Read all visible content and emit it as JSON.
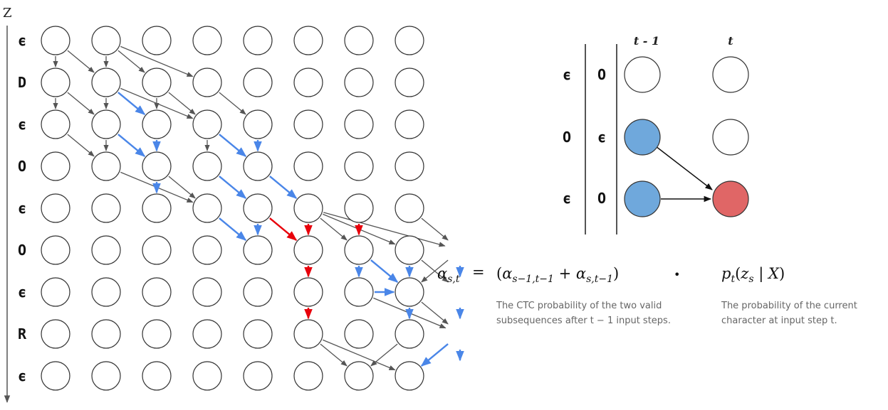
{
  "lattice": {
    "axis_label": "Z",
    "rows": [
      "ϵ",
      "D",
      "ϵ",
      "O",
      "ϵ",
      "O",
      "ϵ",
      "R",
      "ϵ"
    ],
    "columns": 8,
    "edges_gray": [
      [
        0,
        0,
        0,
        1
      ],
      [
        0,
        0,
        1,
        1
      ],
      [
        0,
        1,
        0,
        2
      ],
      [
        0,
        1,
        1,
        2
      ],
      [
        0,
        2,
        1,
        3
      ],
      [
        1,
        0,
        1,
        1
      ],
      [
        1,
        0,
        2,
        1
      ],
      [
        1,
        0,
        3,
        1
      ],
      [
        1,
        1,
        1,
        2
      ],
      [
        1,
        1,
        2,
        2
      ],
      [
        1,
        1,
        3,
        2
      ],
      [
        1,
        2,
        1,
        3
      ],
      [
        1,
        3,
        3,
        4
      ],
      [
        2,
        1,
        2,
        2
      ],
      [
        2,
        1,
        3,
        2
      ],
      [
        2,
        3,
        3,
        4
      ],
      [
        3,
        1,
        4,
        2
      ],
      [
        3,
        2,
        3,
        3
      ],
      [
        3,
        2,
        4,
        3
      ],
      [
        3,
        3,
        4,
        4
      ],
      [
        4,
        3,
        5,
        4
      ],
      [
        5,
        4,
        6,
        5
      ],
      [
        5,
        4,
        7,
        5
      ],
      [
        5,
        4,
        8,
        5
      ],
      [
        5,
        7,
        6,
        8
      ],
      [
        5,
        7,
        7,
        8
      ],
      [
        6,
        5,
        7,
        6
      ],
      [
        6,
        6,
        8,
        7
      ],
      [
        7,
        4,
        8,
        5
      ],
      [
        7,
        5,
        8,
        6
      ],
      [
        7,
        6,
        8,
        7
      ],
      [
        7,
        7,
        6,
        8
      ],
      [
        8,
        5,
        7,
        6
      ],
      [
        8,
        6,
        8,
        7
      ]
    ],
    "edges_blue": [
      [
        1,
        1,
        2,
        2
      ],
      [
        2,
        2,
        2,
        3
      ],
      [
        1,
        2,
        2,
        3
      ],
      [
        2,
        3,
        2,
        4
      ],
      [
        3,
        3,
        4,
        4
      ],
      [
        3,
        2,
        4,
        3
      ],
      [
        4,
        2,
        4,
        3
      ],
      [
        4,
        3,
        5,
        4
      ],
      [
        3,
        4,
        4,
        5
      ],
      [
        4,
        4,
        4,
        5
      ],
      [
        6,
        5,
        6,
        6
      ],
      [
        6,
        5,
        7,
        6
      ],
      [
        6,
        6,
        7,
        6
      ],
      [
        7,
        5,
        7,
        6
      ],
      [
        7,
        6,
        7,
        7
      ],
      [
        8,
        5,
        8,
        6
      ],
      [
        8,
        6,
        8,
        7
      ],
      [
        8,
        7,
        8,
        8
      ],
      [
        8,
        7,
        7,
        8
      ]
    ],
    "edges_red": [
      [
        4,
        4,
        5,
        5
      ],
      [
        5,
        4,
        5,
        5
      ],
      [
        6,
        4,
        6,
        5
      ],
      [
        5,
        5,
        5,
        6
      ],
      [
        5,
        6,
        5,
        7
      ]
    ]
  },
  "inset": {
    "col_labels": [
      "t - 1",
      "t"
    ],
    "left_labels": [
      "ϵ",
      "O",
      "ϵ"
    ],
    "mid_labels": [
      "O",
      "ϵ",
      "O"
    ]
  },
  "equation": {
    "lhs": "α_{s,t}",
    "equals": "=",
    "sum_term": "(α_{s−1,t−1} + α_{s,t−1})",
    "dot": "•",
    "prob_term": "p_t(z_s | X)"
  },
  "notes": {
    "left_line1": "The CTC probability of the two valid",
    "left_line2": "subsequences after t − 1 input steps.",
    "right_line1": "The probability of the current",
    "right_line2": "character at input step t."
  },
  "colors": {
    "gray_arrow": "#555555",
    "blue_arrow": "#4a86e8",
    "red_arrow": "#e8000b",
    "blue_fill": "#6fa8dc",
    "red_fill": "#e06666",
    "circle_stroke": "#333333"
  }
}
